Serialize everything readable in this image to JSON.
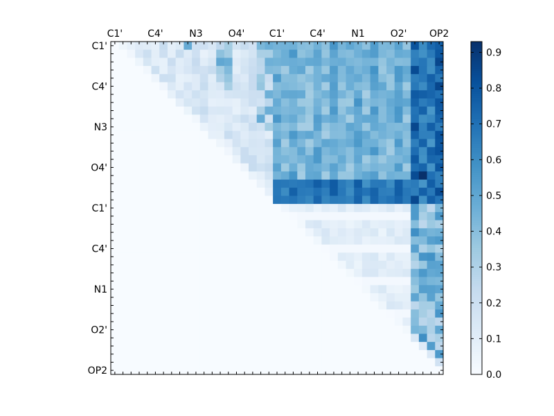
{
  "chart_data": {
    "type": "heatmap",
    "title": "",
    "xlabel": "",
    "ylabel": "",
    "x_tick_labels": [
      "C1'",
      "C4'",
      "N3",
      "O4'",
      "C1'",
      "C4'",
      "N1",
      "O2'",
      "OP2"
    ],
    "y_tick_labels": [
      "C1'",
      "C4'",
      "N3",
      "O4'",
      "C1'",
      "C4'",
      "N1",
      "O2'",
      "OP2"
    ],
    "grid_size": 41,
    "tick_every": 5,
    "upper_triangle_only": true,
    "colormap": "Blues",
    "colorbar": {
      "min": 0.0,
      "max": 0.93,
      "ticks": [
        "0.0",
        "0.1",
        "0.2",
        "0.3",
        "0.4",
        "0.5",
        "0.6",
        "0.7",
        "0.8",
        "0.9"
      ],
      "placement": "right"
    },
    "blocks": {
      "boundary": 20,
      "first_block_base": 0.07,
      "cross_block_base": 0.32,
      "cross_block_strong_rows": [
        17,
        18,
        19
      ],
      "cross_block_strong_value": 0.58,
      "second_block_base": 0.05,
      "op2_columns": [
        37,
        38,
        39,
        40
      ],
      "op2_column_value": 0.55,
      "max_cell": {
        "row": 16,
        "col": 38,
        "value": 0.93
      }
    }
  }
}
